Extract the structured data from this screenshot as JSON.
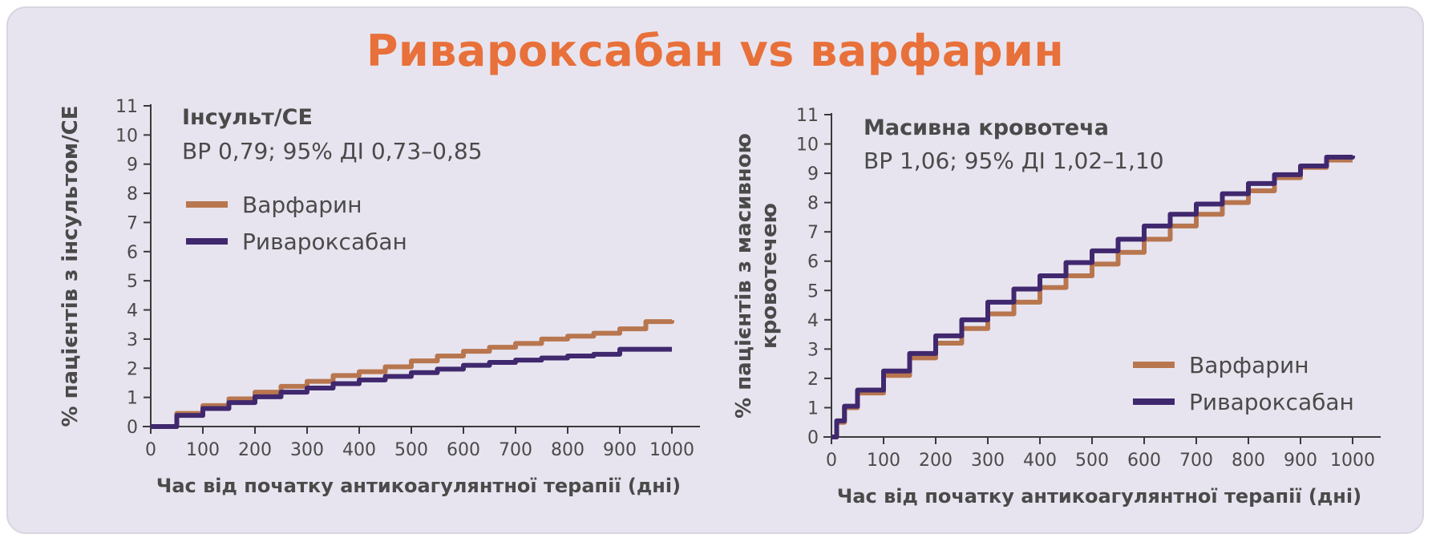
{
  "title": "Ривароксабан vs варфарин",
  "colors": {
    "title": "#e8703a",
    "warfarin": "#b8764f",
    "rivaroxaban": "#40286e",
    "axis": "#3a3a3a",
    "text": "#4a4a4a",
    "background": "#e7e4ef"
  },
  "chart_data": [
    {
      "type": "line",
      "subtitle": "Інсульт/СЕ",
      "annotation": "ВР 0,79; 95% ДІ 0,73–0,85",
      "xlabel": "Час від початку антикоагулянтної терапії (дні)",
      "ylabel": "% пацієнтів з інсультом/СЕ",
      "xlim": [
        0,
        1000
      ],
      "ylim": [
        0,
        11
      ],
      "xticks": [
        "0",
        "100",
        "200",
        "300",
        "400",
        "500",
        "600",
        "700",
        "800",
        "900",
        "1000"
      ],
      "yticks": [
        "0",
        "1",
        "2",
        "3",
        "4",
        "5",
        "6",
        "7",
        "8",
        "9",
        "10",
        "11"
      ],
      "legend_position": "top-left",
      "grid": false,
      "series": [
        {
          "name": "Варфарин",
          "color_key": "warfarin",
          "x": [
            0,
            50,
            100,
            150,
            200,
            250,
            300,
            350,
            400,
            450,
            500,
            550,
            600,
            650,
            700,
            750,
            800,
            850,
            900,
            950,
            1000
          ],
          "y": [
            0,
            0.45,
            0.72,
            0.95,
            1.18,
            1.38,
            1.55,
            1.75,
            1.88,
            2.05,
            2.25,
            2.42,
            2.58,
            2.72,
            2.85,
            3.0,
            3.1,
            3.2,
            3.35,
            3.6,
            3.65
          ]
        },
        {
          "name": "Ривароксабан",
          "color_key": "rivaroxaban",
          "x": [
            0,
            50,
            100,
            150,
            200,
            250,
            300,
            350,
            400,
            450,
            500,
            550,
            600,
            650,
            700,
            750,
            800,
            850,
            900,
            950,
            1000
          ],
          "y": [
            0,
            0.38,
            0.62,
            0.82,
            1.02,
            1.18,
            1.32,
            1.47,
            1.6,
            1.72,
            1.85,
            1.97,
            2.1,
            2.2,
            2.28,
            2.35,
            2.42,
            2.48,
            2.65,
            2.65,
            2.65
          ]
        }
      ]
    },
    {
      "type": "line",
      "subtitle": "Масивна кровотеча",
      "annotation": "ВР 1,06; 95% ДІ 1,02–1,10",
      "xlabel": "Час від початку антикоагулянтної терапії (дні)",
      "ylabel": [
        "% пацієнтів з масивною",
        "кровотечею"
      ],
      "xlim": [
        0,
        1000
      ],
      "ylim": [
        0,
        11
      ],
      "xticks": [
        "0",
        "100",
        "200",
        "300",
        "400",
        "500",
        "600",
        "700",
        "800",
        "900",
        "1000"
      ],
      "yticks": [
        "0",
        "1",
        "2",
        "3",
        "4",
        "5",
        "6",
        "7",
        "8",
        "9",
        "10",
        "11"
      ],
      "legend_position": "bottom-right",
      "grid": false,
      "series": [
        {
          "name": "Варфарин",
          "color_key": "warfarin",
          "x": [
            0,
            10,
            25,
            50,
            100,
            150,
            200,
            250,
            300,
            350,
            400,
            450,
            500,
            550,
            600,
            650,
            700,
            750,
            800,
            850,
            900,
            950,
            1000
          ],
          "y": [
            0,
            0.5,
            1.0,
            1.5,
            2.1,
            2.7,
            3.2,
            3.7,
            4.2,
            4.6,
            5.1,
            5.5,
            5.9,
            6.3,
            6.75,
            7.2,
            7.6,
            8.0,
            8.4,
            8.85,
            9.2,
            9.45,
            9.45
          ]
        },
        {
          "name": "Ривароксабан",
          "color_key": "rivaroxaban",
          "x": [
            0,
            10,
            25,
            50,
            100,
            150,
            200,
            250,
            300,
            350,
            400,
            450,
            500,
            550,
            600,
            650,
            700,
            750,
            800,
            850,
            900,
            950,
            1000
          ],
          "y": [
            0,
            0.55,
            1.05,
            1.6,
            2.25,
            2.85,
            3.45,
            4.0,
            4.6,
            5.05,
            5.5,
            5.95,
            6.35,
            6.75,
            7.2,
            7.6,
            7.95,
            8.3,
            8.65,
            8.95,
            9.25,
            9.55,
            9.6
          ]
        }
      ]
    }
  ]
}
